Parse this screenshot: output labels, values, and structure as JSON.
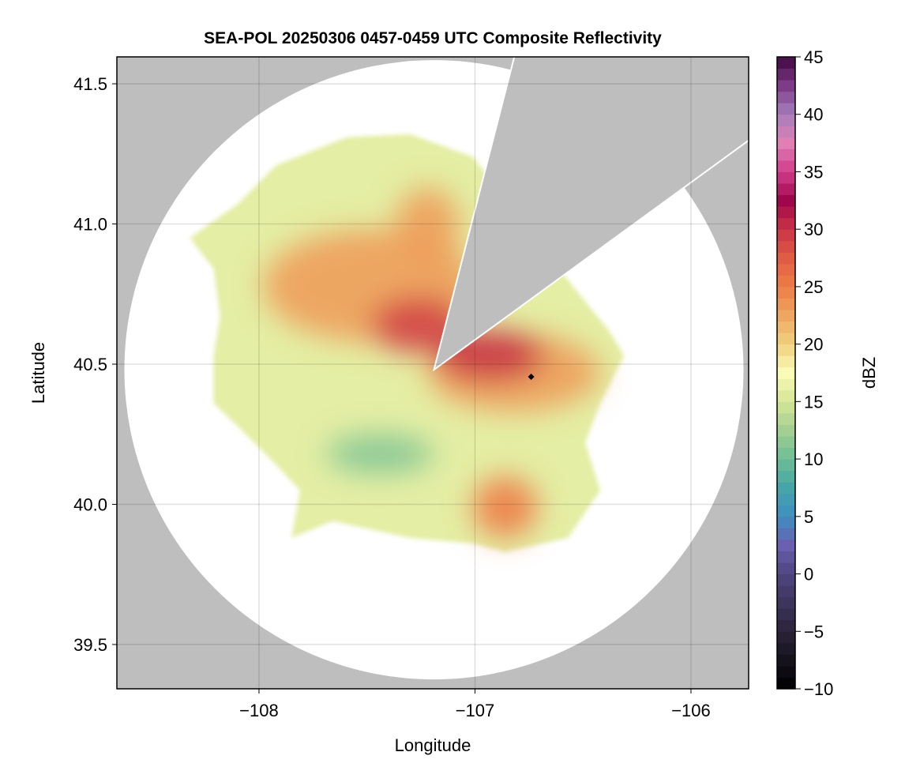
{
  "chart_data": {
    "type": "heatmap",
    "title": "SEA-POL 20250306 0457-0459 UTC Composite Reflectivity",
    "xlabel": "Longitude",
    "ylabel": "Latitude",
    "xlim": [
      -108.658,
      -105.733
    ],
    "ylim": [
      39.342,
      41.596
    ],
    "xticks": [
      -108,
      -107,
      -106
    ],
    "xtick_labels": [
      "−108",
      "−107",
      "−106"
    ],
    "yticks": [
      39.5,
      40.0,
      40.5,
      41.0,
      41.5
    ],
    "ytick_labels": [
      "39.5",
      "40.0",
      "40.5",
      "41.0",
      "41.5"
    ],
    "grid": true,
    "radar_center": {
      "lon": -107.19,
      "lat": 40.48
    },
    "blocked_sector": [
      [
        -107.19,
        40.48
      ],
      [
        -106.84,
        41.53
      ],
      [
        -106.05,
        41.12
      ]
    ],
    "echo_outline": [
      [
        -108.32,
        40.95
      ],
      [
        -108.1,
        41.07
      ],
      [
        -107.92,
        41.21
      ],
      [
        -107.59,
        41.31
      ],
      [
        -107.3,
        41.32
      ],
      [
        -107.01,
        41.24
      ],
      [
        -106.64,
        40.87
      ],
      [
        -106.57,
        40.8
      ],
      [
        -106.38,
        40.62
      ],
      [
        -106.31,
        40.53
      ],
      [
        -106.42,
        40.36
      ],
      [
        -106.49,
        40.22
      ],
      [
        -106.42,
        40.05
      ],
      [
        -106.57,
        39.88
      ],
      [
        -106.86,
        39.83
      ],
      [
        -107.01,
        39.86
      ],
      [
        -107.3,
        39.88
      ],
      [
        -107.48,
        39.91
      ],
      [
        -107.66,
        39.94
      ],
      [
        -107.85,
        39.88
      ],
      [
        -107.81,
        40.05
      ],
      [
        -107.92,
        40.14
      ],
      [
        -108.1,
        40.28
      ],
      [
        -108.21,
        40.36
      ],
      [
        -108.21,
        40.53
      ],
      [
        -108.18,
        40.67
      ],
      [
        -108.21,
        40.84
      ]
    ],
    "echo_base_dbz": 16,
    "echo_regions": [
      {
        "lon": -107.48,
        "lat": 40.78,
        "rlon": 0.5,
        "rlat": 0.2,
        "dbz": 23
      },
      {
        "lon": -106.82,
        "lat": 40.47,
        "rlon": 0.4,
        "rlat": 0.14,
        "dbz": 23
      },
      {
        "lon": -107.22,
        "lat": 40.99,
        "rlon": 0.15,
        "rlat": 0.14,
        "dbz": 23
      },
      {
        "lon": -106.86,
        "lat": 39.99,
        "rlon": 0.15,
        "rlat": 0.11,
        "dbz": 25
      },
      {
        "lon": -107.44,
        "lat": 40.18,
        "rlon": 0.25,
        "rlat": 0.07,
        "dbz": 11
      },
      {
        "lon": -107.26,
        "lat": 40.64,
        "rlon": 0.22,
        "rlat": 0.1,
        "dbz": 29
      },
      {
        "lon": -106.93,
        "lat": 40.53,
        "rlon": 0.25,
        "rlat": 0.09,
        "dbz": 30
      }
    ],
    "marker": {
      "lon": -106.74,
      "lat": 40.455,
      "shape": "diamond",
      "color": "#000000"
    },
    "colorbar": {
      "label": "dBZ",
      "range": [
        -10,
        45
      ],
      "levels": 55,
      "ticks": [
        -10,
        -5,
        0,
        5,
        10,
        15,
        20,
        25,
        30,
        35,
        40,
        45
      ],
      "tick_labels": [
        "−10",
        "−5",
        "0",
        "5",
        "10",
        "15",
        "20",
        "25",
        "30",
        "35",
        "40",
        "45"
      ],
      "stops": [
        [
          -10,
          "#000000"
        ],
        [
          -5,
          "#2a2438"
        ],
        [
          0,
          "#4f4580"
        ],
        [
          2.5,
          "#6a5fb0"
        ],
        [
          5,
          "#3f8fc0"
        ],
        [
          7.5,
          "#45a5a8"
        ],
        [
          10,
          "#6dbd95"
        ],
        [
          12.5,
          "#a3d092"
        ],
        [
          15,
          "#d5e596"
        ],
        [
          17.5,
          "#fbfbb8"
        ],
        [
          20,
          "#f1d27e"
        ],
        [
          22.5,
          "#eea660"
        ],
        [
          25,
          "#ed7e48"
        ],
        [
          27.5,
          "#e15c44"
        ],
        [
          30,
          "#c93446"
        ],
        [
          32.5,
          "#a0064b"
        ],
        [
          35,
          "#cf3d8a"
        ],
        [
          37.5,
          "#e17fb5"
        ],
        [
          40,
          "#a67fbc"
        ],
        [
          42.5,
          "#7d3b88"
        ],
        [
          45,
          "#40073f"
        ]
      ]
    },
    "colors": {
      "no_coverage": "#bebebe",
      "coverage": "#ffffff"
    }
  }
}
